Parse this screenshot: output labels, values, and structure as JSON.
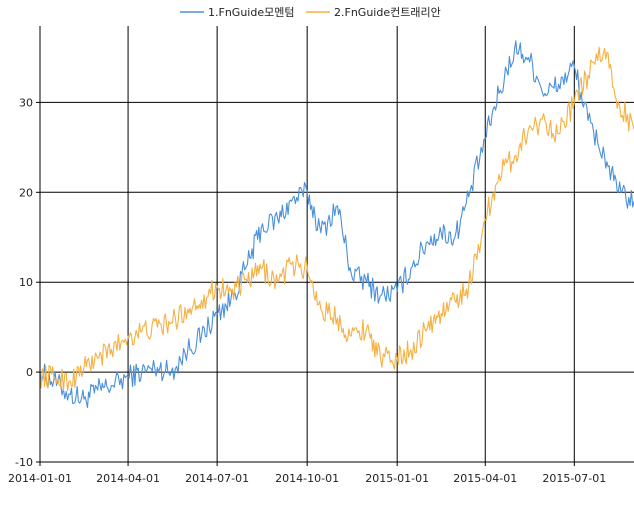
{
  "chart_data": {
    "type": "line",
    "title": "",
    "xlabel": "",
    "ylabel": "",
    "legend_position": "top-center",
    "grid": true,
    "ylim": [
      -10,
      38.5
    ],
    "xlim": [
      "2014-01-01",
      "2015-08-31"
    ],
    "y_ticks": [
      "-10",
      "0",
      "10",
      "20",
      "30"
    ],
    "x_ticks": [
      "2014-01-01",
      "2014-04-01",
      "2014-07-01",
      "2014-10-01",
      "2015-01-01",
      "2015-04-01",
      "2015-07-01"
    ],
    "series": [
      {
        "name": "1.FnGuide모멘텀",
        "color": "#4a90d9",
        "points": [
          [
            "2014-01-01",
            0
          ],
          [
            "2014-01-15",
            -1
          ],
          [
            "2014-02-01",
            -2.5
          ],
          [
            "2014-02-15",
            -3
          ],
          [
            "2014-03-01",
            -2
          ],
          [
            "2014-03-15",
            -1.5
          ],
          [
            "2014-04-01",
            -0.5
          ],
          [
            "2014-04-15",
            0
          ],
          [
            "2014-05-01",
            0.5
          ],
          [
            "2014-05-15",
            0
          ],
          [
            "2014-06-01",
            2.5
          ],
          [
            "2014-06-15",
            4
          ],
          [
            "2014-07-01",
            6.5
          ],
          [
            "2014-07-15",
            8
          ],
          [
            "2014-08-01",
            12
          ],
          [
            "2014-08-15",
            16
          ],
          [
            "2014-09-01",
            17
          ],
          [
            "2014-09-15",
            19
          ],
          [
            "2014-10-01",
            20
          ],
          [
            "2014-10-15",
            15.5
          ],
          [
            "2014-11-01",
            18.5
          ],
          [
            "2014-11-15",
            11
          ],
          [
            "2014-12-01",
            10
          ],
          [
            "2014-12-15",
            8.5
          ],
          [
            "2015-01-01",
            9
          ],
          [
            "2015-01-15",
            11.5
          ],
          [
            "2015-02-01",
            14.5
          ],
          [
            "2015-02-15",
            15.5
          ],
          [
            "2015-03-01",
            15
          ],
          [
            "2015-03-15",
            19.5
          ],
          [
            "2015-04-01",
            26
          ],
          [
            "2015-04-15",
            31
          ],
          [
            "2015-05-01",
            36
          ],
          [
            "2015-05-15",
            35
          ],
          [
            "2015-06-01",
            31
          ],
          [
            "2015-06-15",
            32
          ],
          [
            "2015-07-01",
            34
          ],
          [
            "2015-07-15",
            28
          ],
          [
            "2015-08-01",
            24
          ],
          [
            "2015-08-15",
            20
          ],
          [
            "2015-08-31",
            19
          ]
        ]
      },
      {
        "name": "2.FnGuide컨트래리안",
        "color": "#f5b041",
        "points": [
          [
            "2014-01-01",
            -0.5
          ],
          [
            "2014-01-15",
            -0.5
          ],
          [
            "2014-02-01",
            -1
          ],
          [
            "2014-02-15",
            0.5
          ],
          [
            "2014-03-01",
            1.5
          ],
          [
            "2014-03-15",
            2.5
          ],
          [
            "2014-04-01",
            4
          ],
          [
            "2014-04-15",
            4.5
          ],
          [
            "2014-05-01",
            5
          ],
          [
            "2014-05-15",
            5.5
          ],
          [
            "2014-06-01",
            7
          ],
          [
            "2014-06-15",
            8
          ],
          [
            "2014-07-01",
            9.5
          ],
          [
            "2014-07-15",
            9
          ],
          [
            "2014-08-01",
            10
          ],
          [
            "2014-08-15",
            11.5
          ],
          [
            "2014-09-01",
            10
          ],
          [
            "2014-09-15",
            12
          ],
          [
            "2014-10-01",
            11.5
          ],
          [
            "2014-10-15",
            7
          ],
          [
            "2014-11-01",
            6
          ],
          [
            "2014-11-15",
            4
          ],
          [
            "2014-12-01",
            5
          ],
          [
            "2014-12-15",
            1.5
          ],
          [
            "2015-01-01",
            1.5
          ],
          [
            "2015-01-15",
            2.5
          ],
          [
            "2015-02-01",
            5
          ],
          [
            "2015-02-15",
            6.5
          ],
          [
            "2015-03-01",
            8
          ],
          [
            "2015-03-15",
            9.5
          ],
          [
            "2015-04-01",
            17
          ],
          [
            "2015-04-15",
            22
          ],
          [
            "2015-05-01",
            24
          ],
          [
            "2015-05-15",
            27
          ],
          [
            "2015-06-01",
            28
          ],
          [
            "2015-06-15",
            26.5
          ],
          [
            "2015-07-01",
            30
          ],
          [
            "2015-07-15",
            33
          ],
          [
            "2015-08-01",
            36
          ],
          [
            "2015-08-15",
            30
          ],
          [
            "2015-08-31",
            27
          ]
        ]
      }
    ]
  }
}
